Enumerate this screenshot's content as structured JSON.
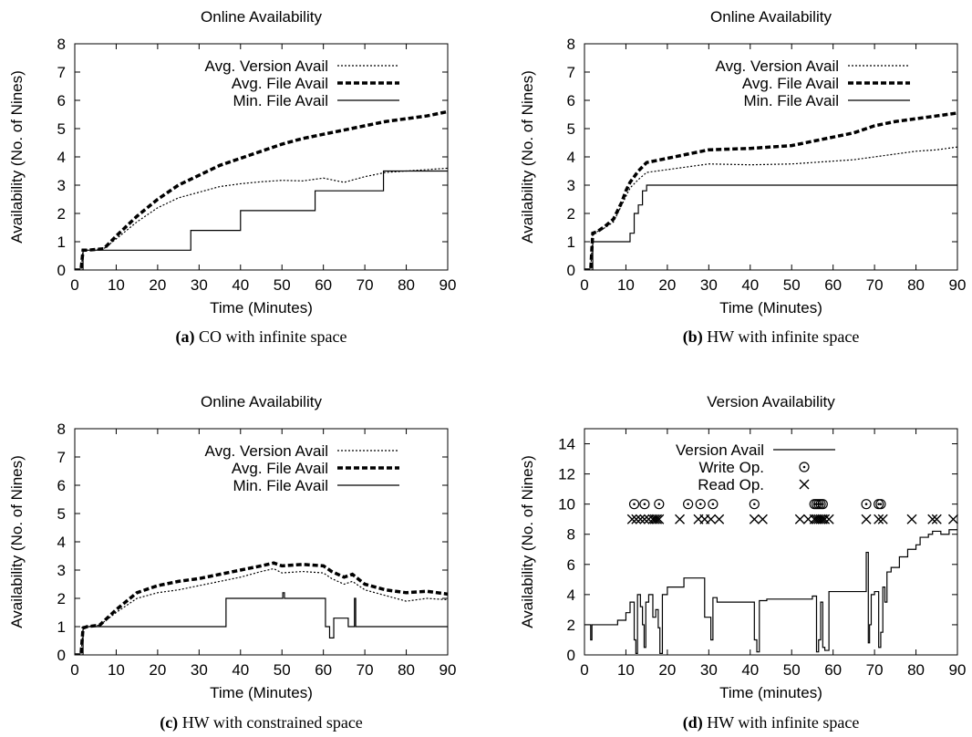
{
  "chart_data": [
    {
      "id": "a",
      "type": "line",
      "title": "Online Availability",
      "xlabel": "Time (Minutes)",
      "ylabel": "Availability (No. of Nines)",
      "xlim": [
        0,
        90
      ],
      "ylim": [
        0,
        8
      ],
      "xticks": [
        0,
        10,
        20,
        30,
        40,
        50,
        60,
        70,
        80,
        90
      ],
      "yticks": [
        0,
        1,
        2,
        3,
        4,
        5,
        6,
        7,
        8
      ],
      "legend_position": "top-left",
      "caption_tag": "(a)",
      "caption_text": "CO with infinite space",
      "series": [
        {
          "name": "Avg. Version Avail",
          "style": "dotted",
          "step": false,
          "x": [
            0,
            1.5,
            2,
            3,
            7,
            10,
            15,
            20,
            25,
            30,
            35,
            40,
            45,
            50,
            55,
            60,
            65,
            70,
            75,
            80,
            85,
            90
          ],
          "y": [
            0,
            0,
            0.7,
            0.7,
            0.75,
            1.1,
            1.7,
            2.2,
            2.55,
            2.75,
            2.95,
            3.05,
            3.12,
            3.17,
            3.15,
            3.25,
            3.1,
            3.3,
            3.45,
            3.5,
            3.55,
            3.6
          ]
        },
        {
          "name": "Avg. File Avail",
          "style": "thick-dash",
          "step": false,
          "x": [
            0,
            1.5,
            2,
            3,
            7,
            10,
            15,
            20,
            25,
            30,
            35,
            40,
            45,
            50,
            55,
            60,
            65,
            70,
            75,
            80,
            85,
            90
          ],
          "y": [
            0,
            0,
            0.7,
            0.7,
            0.75,
            1.2,
            1.9,
            2.5,
            3.0,
            3.35,
            3.7,
            3.95,
            4.2,
            4.45,
            4.65,
            4.8,
            4.95,
            5.1,
            5.25,
            5.35,
            5.45,
            5.6
          ]
        },
        {
          "name": "Min. File Avail",
          "style": "solid",
          "step": true,
          "x": [
            0,
            1.5,
            2,
            26.5,
            28,
            40,
            58,
            74.5,
            90
          ],
          "y": [
            0,
            0,
            0.7,
            0.7,
            1.4,
            2.1,
            2.8,
            3.5,
            3.5
          ]
        }
      ]
    },
    {
      "id": "b",
      "type": "line",
      "title": "Online Availability",
      "xlabel": "Time (Minutes)",
      "ylabel": "Availability (No. of Nines)",
      "xlim": [
        0,
        90
      ],
      "ylim": [
        0,
        8
      ],
      "xticks": [
        0,
        10,
        20,
        30,
        40,
        50,
        60,
        70,
        80,
        90
      ],
      "yticks": [
        0,
        1,
        2,
        3,
        4,
        5,
        6,
        7,
        8
      ],
      "legend_position": "top-right",
      "caption_tag": "(b)",
      "caption_text": "HW with infinite space",
      "series": [
        {
          "name": "Avg. Version Avail",
          "style": "dotted",
          "step": false,
          "x": [
            0,
            1.5,
            2,
            3,
            5,
            7,
            9,
            10,
            11,
            13,
            15,
            20,
            25,
            30,
            40,
            50,
            55,
            60,
            65,
            70,
            75,
            80,
            85,
            90
          ],
          "y": [
            0,
            0,
            1.3,
            1.35,
            1.5,
            1.7,
            2.3,
            2.6,
            2.9,
            3.2,
            3.45,
            3.55,
            3.65,
            3.75,
            3.72,
            3.75,
            3.8,
            3.85,
            3.9,
            4.0,
            4.1,
            4.2,
            4.25,
            4.35
          ]
        },
        {
          "name": "Avg. File Avail",
          "style": "thick-dash",
          "step": false,
          "x": [
            0,
            1.5,
            2,
            3,
            5,
            7,
            9,
            10,
            11,
            13,
            15,
            20,
            25,
            30,
            40,
            50,
            55,
            60,
            65,
            70,
            75,
            80,
            85,
            90
          ],
          "y": [
            0,
            0,
            1.3,
            1.35,
            1.55,
            1.8,
            2.4,
            2.8,
            3.1,
            3.5,
            3.8,
            3.95,
            4.1,
            4.25,
            4.3,
            4.4,
            4.55,
            4.7,
            4.85,
            5.1,
            5.25,
            5.35,
            5.45,
            5.55
          ]
        },
        {
          "name": "Min. File Avail",
          "style": "solid",
          "step": true,
          "x": [
            0,
            1.5,
            2,
            10,
            11,
            12,
            13,
            14,
            15,
            90
          ],
          "y": [
            0,
            0,
            1.0,
            1.0,
            1.3,
            2.0,
            2.3,
            2.8,
            3.0,
            3.0
          ]
        }
      ]
    },
    {
      "id": "c",
      "type": "line",
      "title": "Online Availability",
      "xlabel": "Time (Minutes)",
      "ylabel": "Availability (No. of Nines)",
      "xlim": [
        0,
        90
      ],
      "ylim": [
        0,
        8
      ],
      "xticks": [
        0,
        10,
        20,
        30,
        40,
        50,
        60,
        70,
        80,
        90
      ],
      "yticks": [
        0,
        1,
        2,
        3,
        4,
        5,
        6,
        7,
        8
      ],
      "legend_position": "top-right",
      "caption_tag": "(c)",
      "caption_text": "HW with constrained space",
      "series": [
        {
          "name": "Avg. Version Avail",
          "style": "dotted",
          "step": false,
          "x": [
            0,
            1.5,
            2,
            3,
            6,
            10,
            15,
            20,
            25,
            30,
            35,
            40,
            45,
            48,
            50,
            55,
            60,
            62,
            65,
            67,
            70,
            75,
            80,
            85,
            90
          ],
          "y": [
            0,
            0,
            0.95,
            1.0,
            1.05,
            1.5,
            2.0,
            2.2,
            2.3,
            2.45,
            2.6,
            2.75,
            2.95,
            3.05,
            2.9,
            2.95,
            2.9,
            2.7,
            2.5,
            2.6,
            2.3,
            2.1,
            1.9,
            2.0,
            1.95
          ]
        },
        {
          "name": "Avg. File Avail",
          "style": "thick-dash",
          "step": false,
          "x": [
            0,
            1.5,
            2,
            3,
            6,
            10,
            15,
            20,
            25,
            30,
            35,
            40,
            45,
            48,
            50,
            55,
            60,
            62,
            65,
            67,
            70,
            75,
            80,
            85,
            90
          ],
          "y": [
            0,
            0,
            0.95,
            1.0,
            1.05,
            1.6,
            2.2,
            2.45,
            2.6,
            2.7,
            2.85,
            3.0,
            3.15,
            3.25,
            3.15,
            3.2,
            3.15,
            2.95,
            2.75,
            2.85,
            2.5,
            2.3,
            2.2,
            2.25,
            2.15
          ]
        },
        {
          "name": "Min. File Avail",
          "style": "solid",
          "step": true,
          "x": [
            0,
            1.5,
            2,
            36.5,
            50.2,
            50.6,
            60.5,
            61.5,
            62.5,
            66,
            67.5,
            67.8,
            68.2,
            90
          ],
          "y": [
            0,
            0,
            1.0,
            2.0,
            2.2,
            2.0,
            1.0,
            0.6,
            1.3,
            1.0,
            2.0,
            1.0,
            1.0,
            1.0
          ]
        }
      ]
    },
    {
      "id": "d",
      "type": "line",
      "title": "Version Availability",
      "xlabel": "Time (minutes)",
      "ylabel": "Availability (No. of Nines)",
      "xlim": [
        0,
        90
      ],
      "ylim": [
        0,
        15
      ],
      "xticks": [
        0,
        10,
        20,
        30,
        40,
        50,
        60,
        70,
        80,
        90
      ],
      "yticks": [
        0,
        2,
        4,
        6,
        8,
        10,
        12,
        14
      ],
      "legend_position": "top-left",
      "caption_tag": "(d)",
      "caption_text": "HW with infinite space",
      "series": [
        {
          "name": "Version Avail",
          "style": "solid",
          "step": true,
          "x": [
            0,
            1.5,
            1.8,
            2,
            8,
            10,
            11,
            12,
            12.4,
            12.8,
            13.5,
            14,
            14.4,
            14.8,
            15.5,
            16.5,
            17.2,
            17.8,
            18.2,
            18.8,
            20,
            24,
            29,
            30.5,
            31,
            32,
            41,
            41.6,
            42.2,
            44,
            55,
            56,
            56.5,
            57,
            57.5,
            58,
            59,
            68,
            68.5,
            68.8,
            69.2,
            70,
            71,
            71.5,
            72,
            72.5,
            73,
            74,
            76,
            78,
            80,
            81,
            83,
            84,
            86,
            88,
            90
          ],
          "y": [
            2.0,
            1.0,
            2.0,
            2.0,
            2.3,
            2.8,
            3.5,
            1.0,
            0.1,
            4.0,
            3.2,
            2.0,
            0.5,
            3.5,
            4.0,
            2.5,
            3.0,
            1.8,
            0.1,
            4.0,
            4.5,
            5.1,
            2.5,
            1.0,
            3.8,
            3.5,
            1.0,
            0.2,
            3.6,
            3.7,
            3.9,
            0.2,
            1.0,
            3.5,
            0.5,
            0.3,
            4.2,
            6.8,
            0.8,
            2.0,
            4.0,
            4.2,
            0.5,
            1.5,
            4.5,
            3.5,
            5.5,
            5.8,
            6.5,
            7.0,
            7.3,
            7.8,
            8.0,
            8.2,
            8.0,
            8.3,
            8.3
          ]
        },
        {
          "name": "Write Op.",
          "style": "marker-circle-dot",
          "x": [
            12,
            14.5,
            18,
            25,
            28,
            31,
            41,
            55.5,
            56,
            56.5,
            57,
            57.5,
            68,
            71,
            71.5
          ],
          "y": [
            10,
            10,
            10,
            10,
            10,
            10,
            10,
            10,
            10,
            10,
            10,
            10,
            10,
            10,
            10
          ]
        },
        {
          "name": "Read Op.",
          "style": "marker-x",
          "x": [
            11.5,
            12.5,
            13.5,
            14.5,
            15.5,
            16.5,
            17,
            17.5,
            18,
            23,
            27.5,
            29,
            30.5,
            32.5,
            41,
            43,
            52,
            54,
            55.5,
            56,
            56.5,
            57,
            57.5,
            58,
            59,
            68,
            71,
            72,
            79,
            84,
            85,
            89
          ],
          "y": [
            9,
            9,
            9,
            9,
            9,
            9,
            9,
            9,
            9,
            9,
            9,
            9,
            9,
            9,
            9,
            9,
            9,
            9,
            9,
            9,
            9,
            9,
            9,
            9,
            9,
            9,
            9,
            9,
            9,
            9,
            9,
            9
          ]
        }
      ]
    }
  ]
}
